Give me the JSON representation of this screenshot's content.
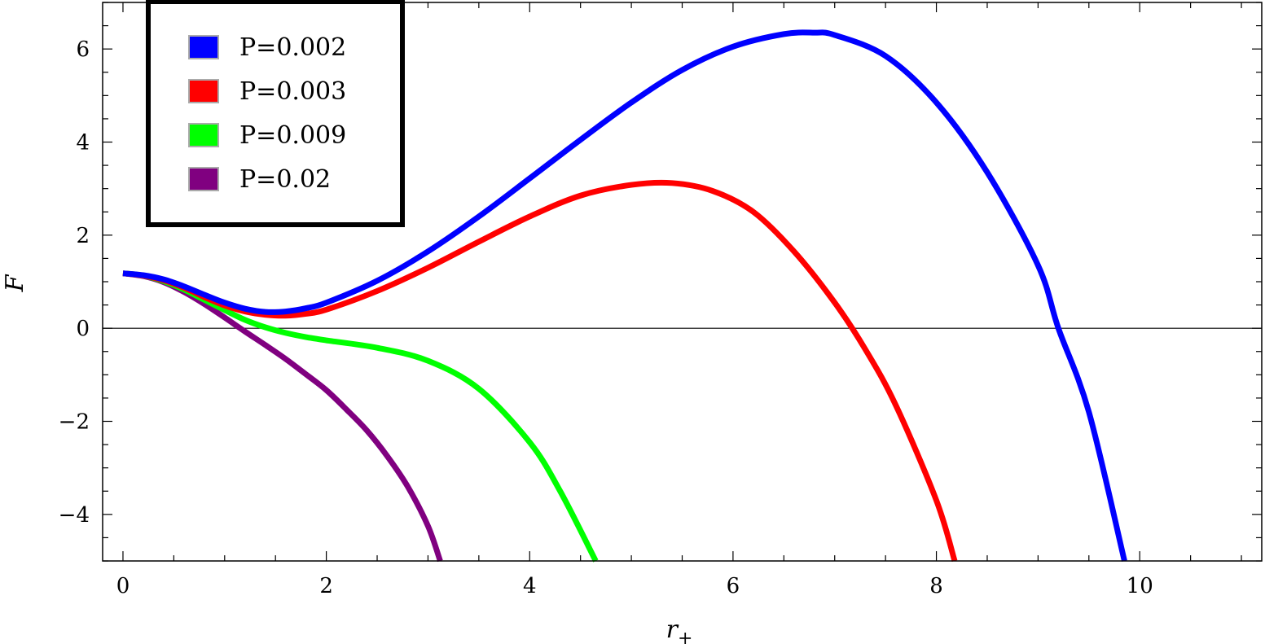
{
  "chart_data": {
    "type": "line",
    "xlabel": "r",
    "xlabel_subscript": "+",
    "ylabel": "F",
    "xlim": [
      -0.2,
      11.2
    ],
    "ylim": [
      -5,
      7
    ],
    "x_ticks": [
      0,
      2,
      4,
      6,
      8,
      10
    ],
    "y_ticks": [
      -4,
      -2,
      0,
      2,
      4,
      6
    ],
    "x_tick_labels": [
      "0",
      "2",
      "4",
      "6",
      "8",
      "10"
    ],
    "y_tick_labels": [
      "−4",
      "−2",
      "0",
      "2",
      "4",
      "6"
    ],
    "zero_line": true,
    "grid": false,
    "legend_position": "top-left",
    "series": [
      {
        "name": "P=0.002",
        "color": "#0000ff",
        "x": [
          0,
          0.2,
          0.4,
          0.6,
          0.8,
          1.0,
          1.2,
          1.4,
          1.6,
          1.8,
          2.0,
          2.5,
          3.0,
          3.5,
          4.0,
          4.5,
          5.0,
          5.5,
          6.0,
          6.5,
          6.8,
          7.0,
          7.5,
          8.0,
          8.5,
          9.0,
          9.2,
          9.5,
          9.85
        ],
        "y": [
          1.18,
          1.14,
          1.05,
          0.9,
          0.72,
          0.55,
          0.42,
          0.35,
          0.36,
          0.43,
          0.55,
          1.02,
          1.65,
          2.4,
          3.22,
          4.05,
          4.85,
          5.55,
          6.05,
          6.32,
          6.35,
          6.3,
          5.85,
          4.85,
          3.35,
          1.35,
          0.0,
          -1.8,
          -5.0
        ]
      },
      {
        "name": "P=0.003",
        "color": "#ff0000",
        "x": [
          0,
          0.2,
          0.4,
          0.6,
          0.8,
          1.0,
          1.2,
          1.4,
          1.6,
          1.8,
          2.0,
          2.5,
          3.0,
          3.5,
          4.0,
          4.5,
          5.0,
          5.4,
          5.8,
          6.2,
          6.6,
          7.0,
          7.3,
          7.6,
          8.0,
          8.18
        ],
        "y": [
          1.18,
          1.13,
          1.03,
          0.87,
          0.67,
          0.49,
          0.36,
          0.29,
          0.27,
          0.31,
          0.4,
          0.8,
          1.3,
          1.86,
          2.4,
          2.85,
          3.08,
          3.12,
          2.95,
          2.5,
          1.65,
          0.55,
          -0.45,
          -1.65,
          -3.7,
          -5.0
        ]
      },
      {
        "name": "P=0.009",
        "color": "#00ff00",
        "x": [
          0,
          0.2,
          0.4,
          0.6,
          0.8,
          1.0,
          1.2,
          1.4,
          1.6,
          1.8,
          2.0,
          2.5,
          3.0,
          3.5,
          4.0,
          4.3,
          4.65
        ],
        "y": [
          1.18,
          1.13,
          1.01,
          0.83,
          0.61,
          0.39,
          0.18,
          0.02,
          -0.1,
          -0.19,
          -0.26,
          -0.42,
          -0.7,
          -1.3,
          -2.45,
          -3.5,
          -5.0
        ]
      },
      {
        "name": "P=0.02",
        "color": "#800080",
        "x": [
          0,
          0.2,
          0.4,
          0.6,
          0.8,
          1.0,
          1.2,
          1.4,
          1.6,
          1.8,
          2.0,
          2.2,
          2.4,
          2.6,
          2.8,
          3.0,
          3.12
        ],
        "y": [
          1.18,
          1.12,
          0.99,
          0.78,
          0.52,
          0.23,
          -0.07,
          -0.36,
          -0.66,
          -0.99,
          -1.33,
          -1.75,
          -2.2,
          -2.75,
          -3.4,
          -4.25,
          -5.0
        ]
      }
    ]
  }
}
